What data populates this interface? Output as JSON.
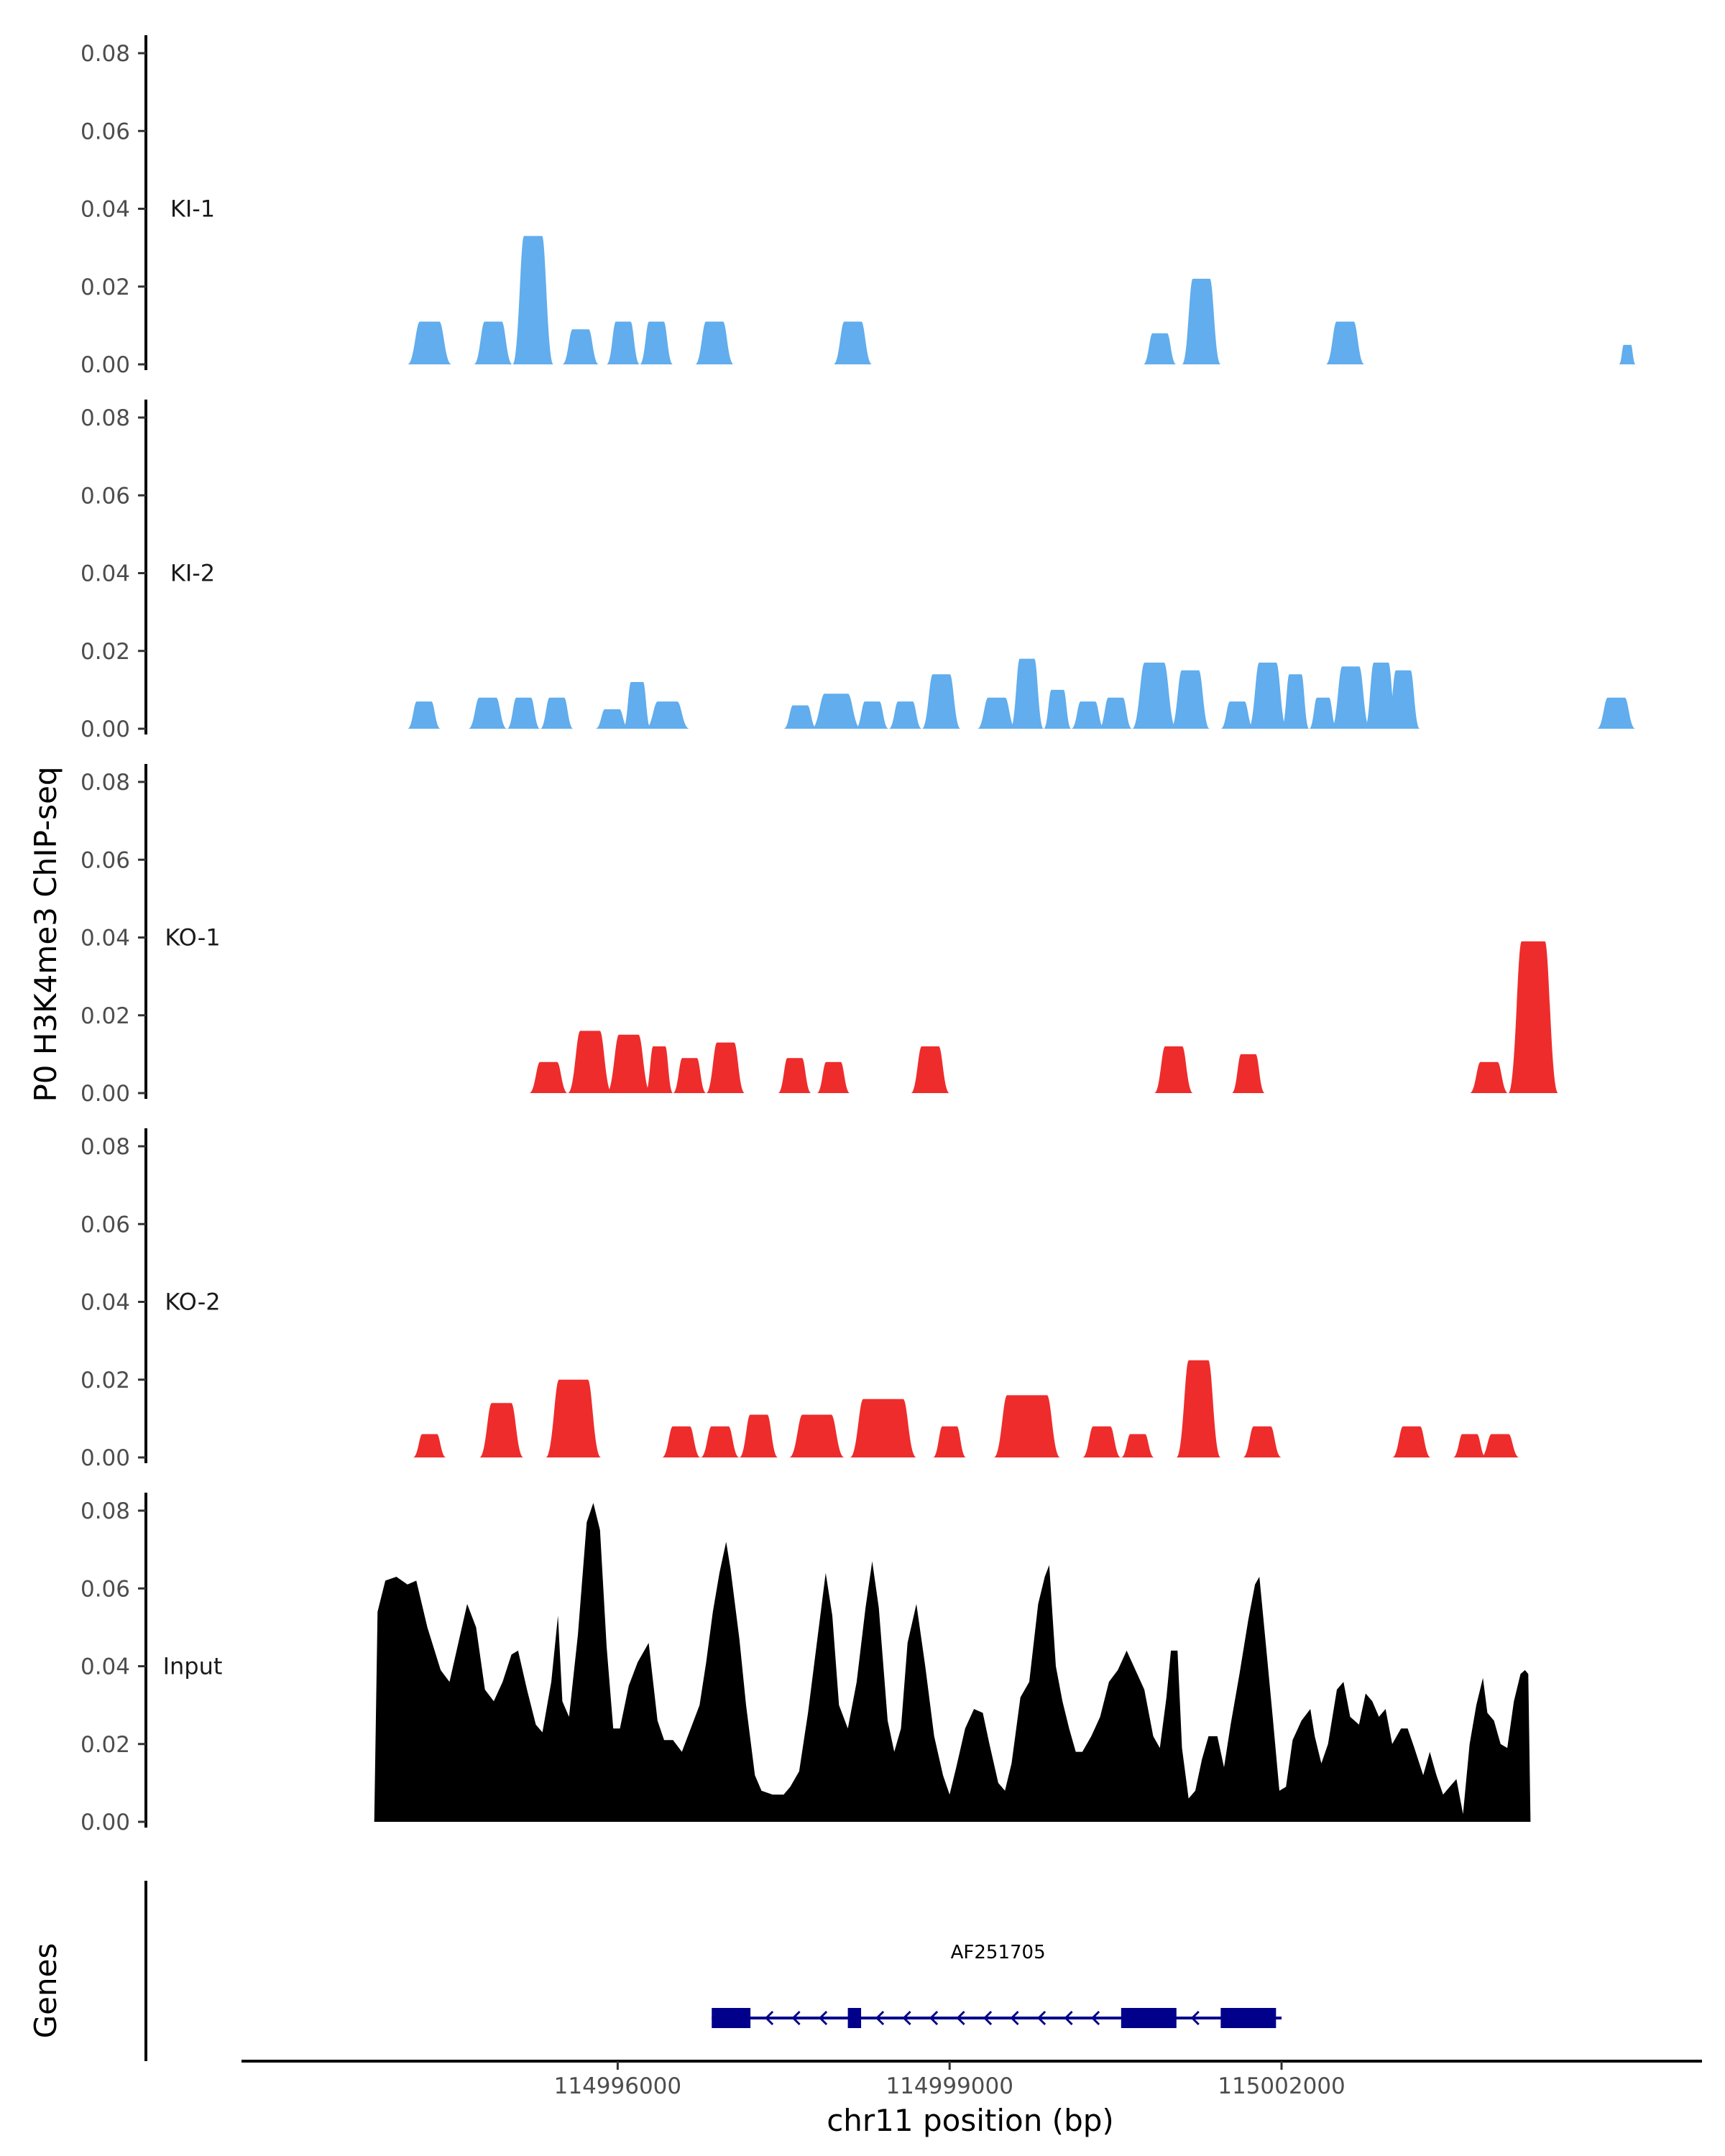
{
  "chart_data": {
    "type": "area",
    "title": "",
    "ylabel": "P0 H3K4me3 ChIP-seq",
    "xlabel": "chr11 position (bp)",
    "x_range": [
      114993800,
      115005200
    ],
    "xlim": [
      114992600,
      115005800
    ],
    "x_ticks": [
      114996000,
      114999000,
      115002000
    ],
    "x_tick_labels": [
      "114996000",
      "114999000",
      "115002000"
    ],
    "y_range": [
      0,
      0.085
    ],
    "y_ticks": [
      0,
      0.02,
      0.04,
      0.06,
      0.08
    ],
    "y_tick_labels": [
      "0.00",
      "0.02",
      "0.04",
      "0.06",
      "0.08"
    ],
    "colors": {
      "KI": "#61ADED",
      "KO": "#EE2C2C",
      "Input": "#000000",
      "gene": "#00008B"
    },
    "tracks": [
      {
        "name": "KI-1",
        "color": "#61ADED",
        "peaks": [
          [
            114994100,
            114994500,
            0.011
          ],
          [
            114994700,
            114995050,
            0.011
          ],
          [
            114995050,
            114995420,
            0.033
          ],
          [
            114995500,
            114995830,
            0.009
          ],
          [
            114995900,
            114996200,
            0.011
          ],
          [
            114996200,
            114996500,
            0.011
          ],
          [
            114996700,
            114997050,
            0.011
          ],
          [
            114997950,
            114998300,
            0.011
          ],
          [
            115000750,
            115001050,
            0.008
          ],
          [
            115001100,
            115001450,
            0.022
          ],
          [
            115002400,
            115002750,
            0.011
          ],
          [
            115005050,
            115005200,
            0.005
          ]
        ]
      },
      {
        "name": "KI-2",
        "color": "#61ADED",
        "peaks": [
          [
            114994100,
            114994400,
            0.007
          ],
          [
            114994650,
            114995000,
            0.008
          ],
          [
            114995000,
            114995300,
            0.008
          ],
          [
            114995300,
            114995600,
            0.008
          ],
          [
            114995800,
            114996100,
            0.005
          ],
          [
            114996050,
            114996300,
            0.012
          ],
          [
            114996250,
            114996650,
            0.007
          ],
          [
            114997500,
            114997800,
            0.006
          ],
          [
            114997750,
            114998200,
            0.009
          ],
          [
            114998150,
            114998450,
            0.007
          ],
          [
            114998450,
            114998750,
            0.007
          ],
          [
            114998750,
            114999100,
            0.014
          ],
          [
            114999250,
            114999600,
            0.008
          ],
          [
            114999550,
            114999850,
            0.018
          ],
          [
            114999850,
            115000100,
            0.01
          ],
          [
            115000100,
            115000400,
            0.007
          ],
          [
            115000350,
            115000650,
            0.008
          ],
          [
            115000650,
            115001050,
            0.017
          ],
          [
            115001000,
            115001350,
            0.015
          ],
          [
            115001450,
            115001750,
            0.007
          ],
          [
            115001700,
            115002050,
            0.017
          ],
          [
            115002000,
            115002250,
            0.014
          ],
          [
            115002250,
            115002500,
            0.008
          ],
          [
            115002450,
            115002800,
            0.016
          ],
          [
            115002750,
            115003050,
            0.017
          ],
          [
            115002950,
            115003250,
            0.015
          ],
          [
            115004850,
            115005200,
            0.008
          ]
        ]
      },
      {
        "name": "KO-1",
        "color": "#EE2C2C",
        "peaks": [
          [
            114995200,
            114995550,
            0.008
          ],
          [
            114995550,
            114995950,
            0.016
          ],
          [
            114995900,
            114996300,
            0.015
          ],
          [
            114996250,
            114996500,
            0.012
          ],
          [
            114996500,
            114996800,
            0.009
          ],
          [
            114996800,
            114997150,
            0.013
          ],
          [
            114997450,
            114997750,
            0.009
          ],
          [
            114997800,
            114998100,
            0.008
          ],
          [
            114998650,
            114999000,
            0.012
          ],
          [
            115000850,
            115001200,
            0.012
          ],
          [
            115001550,
            115001850,
            0.01
          ],
          [
            115003700,
            115004050,
            0.008
          ],
          [
            115004050,
            115004500,
            0.039
          ]
        ]
      },
      {
        "name": "KO-2",
        "color": "#EE2C2C",
        "peaks": [
          [
            114994150,
            114994450,
            0.006
          ],
          [
            114994750,
            114995150,
            0.014
          ],
          [
            114995350,
            114995850,
            0.02
          ],
          [
            114996400,
            114996750,
            0.008
          ],
          [
            114996750,
            114997100,
            0.008
          ],
          [
            114997100,
            114997450,
            0.011
          ],
          [
            114997550,
            114998050,
            0.011
          ],
          [
            114998100,
            114998700,
            0.015
          ],
          [
            114998850,
            114999150,
            0.008
          ],
          [
            114999400,
            115000000,
            0.016
          ],
          [
            115000200,
            115000550,
            0.008
          ],
          [
            115000550,
            115000850,
            0.006
          ],
          [
            115001050,
            115001450,
            0.025
          ],
          [
            115001650,
            115002000,
            0.008
          ],
          [
            115003000,
            115003350,
            0.008
          ],
          [
            115003550,
            115003850,
            0.006
          ],
          [
            115003800,
            115004150,
            0.006
          ]
        ]
      },
      {
        "name": "Input",
        "color": "#000000",
        "points": [
          [
            114993800,
            0
          ],
          [
            114993830,
            0.054
          ],
          [
            114993900,
            0.062
          ],
          [
            114994000,
            0.063
          ],
          [
            114994100,
            0.061
          ],
          [
            114994180,
            0.062
          ],
          [
            114994280,
            0.05
          ],
          [
            114994400,
            0.039
          ],
          [
            114994480,
            0.036
          ],
          [
            114994560,
            0.046
          ],
          [
            114994640,
            0.056
          ],
          [
            114994720,
            0.05
          ],
          [
            114994800,
            0.034
          ],
          [
            114994880,
            0.031
          ],
          [
            114994960,
            0.036
          ],
          [
            114995040,
            0.043
          ],
          [
            114995100,
            0.044
          ],
          [
            114995180,
            0.034
          ],
          [
            114995260,
            0.025
          ],
          [
            114995320,
            0.023
          ],
          [
            114995400,
            0.036
          ],
          [
            114995460,
            0.053
          ],
          [
            114995500,
            0.031
          ],
          [
            114995560,
            0.027
          ],
          [
            114995640,
            0.048
          ],
          [
            114995720,
            0.077
          ],
          [
            114995780,
            0.082
          ],
          [
            114995840,
            0.075
          ],
          [
            114995900,
            0.045
          ],
          [
            114995960,
            0.024
          ],
          [
            114996020,
            0.024
          ],
          [
            114996100,
            0.035
          ],
          [
            114996180,
            0.041
          ],
          [
            114996280,
            0.046
          ],
          [
            114996360,
            0.026
          ],
          [
            114996420,
            0.021
          ],
          [
            114996500,
            0.021
          ],
          [
            114996580,
            0.018
          ],
          [
            114996660,
            0.024
          ],
          [
            114996740,
            0.03
          ],
          [
            114996800,
            0.041
          ],
          [
            114996860,
            0.054
          ],
          [
            114996920,
            0.064
          ],
          [
            114996980,
            0.072
          ],
          [
            114997020,
            0.065
          ],
          [
            114997100,
            0.047
          ],
          [
            114997160,
            0.03
          ],
          [
            114997240,
            0.012
          ],
          [
            114997300,
            0.008
          ],
          [
            114997400,
            0.007
          ],
          [
            114997500,
            0.007
          ],
          [
            114997560,
            0.009
          ],
          [
            114997640,
            0.013
          ],
          [
            114997720,
            0.028
          ],
          [
            114997800,
            0.046
          ],
          [
            114997880,
            0.064
          ],
          [
            114997940,
            0.053
          ],
          [
            114998000,
            0.03
          ],
          [
            114998080,
            0.024
          ],
          [
            114998160,
            0.036
          ],
          [
            114998240,
            0.055
          ],
          [
            114998300,
            0.067
          ],
          [
            114998360,
            0.055
          ],
          [
            114998440,
            0.026
          ],
          [
            114998500,
            0.018
          ],
          [
            114998560,
            0.024
          ],
          [
            114998620,
            0.046
          ],
          [
            114998700,
            0.056
          ],
          [
            114998780,
            0.04
          ],
          [
            114998860,
            0.022
          ],
          [
            114998940,
            0.012
          ],
          [
            114999000,
            0.007
          ],
          [
            114999060,
            0.014
          ],
          [
            114999140,
            0.024
          ],
          [
            114999220,
            0.029
          ],
          [
            114999300,
            0.028
          ],
          [
            114999360,
            0.02
          ],
          [
            114999440,
            0.01
          ],
          [
            114999500,
            0.008
          ],
          [
            114999560,
            0.015
          ],
          [
            114999640,
            0.032
          ],
          [
            114999720,
            0.036
          ],
          [
            114999800,
            0.056
          ],
          [
            114999860,
            0.063
          ],
          [
            114999900,
            0.066
          ],
          [
            114999960,
            0.04
          ],
          [
            115000020,
            0.031
          ],
          [
            115000080,
            0.024
          ],
          [
            115000140,
            0.018
          ],
          [
            115000200,
            0.018
          ],
          [
            115000280,
            0.022
          ],
          [
            115000360,
            0.027
          ],
          [
            115000440,
            0.036
          ],
          [
            115000520,
            0.039
          ],
          [
            115000600,
            0.044
          ],
          [
            115000680,
            0.039
          ],
          [
            115000760,
            0.034
          ],
          [
            115000840,
            0.022
          ],
          [
            115000900,
            0.019
          ],
          [
            115000960,
            0.032
          ],
          [
            115001000,
            0.044
          ],
          [
            115001060,
            0.044
          ],
          [
            115001100,
            0.019
          ],
          [
            115001160,
            0.006
          ],
          [
            115001220,
            0.008
          ],
          [
            115001280,
            0.016
          ],
          [
            115001340,
            0.022
          ],
          [
            115001420,
            0.022
          ],
          [
            115001480,
            0.014
          ],
          [
            115001540,
            0.025
          ],
          [
            115001620,
            0.038
          ],
          [
            115001700,
            0.052
          ],
          [
            115001760,
            0.061
          ],
          [
            115001800,
            0.063
          ],
          [
            115001860,
            0.045
          ],
          [
            115001920,
            0.027
          ],
          [
            115001980,
            0.008
          ],
          [
            115002040,
            0.009
          ],
          [
            115002100,
            0.021
          ],
          [
            115002180,
            0.026
          ],
          [
            115002260,
            0.029
          ],
          [
            115002300,
            0.022
          ],
          [
            115002360,
            0.015
          ],
          [
            115002420,
            0.02
          ],
          [
            115002500,
            0.034
          ],
          [
            115002560,
            0.036
          ],
          [
            115002620,
            0.027
          ],
          [
            115002700,
            0.025
          ],
          [
            115002760,
            0.033
          ],
          [
            115002820,
            0.031
          ],
          [
            115002880,
            0.027
          ],
          [
            115002940,
            0.029
          ],
          [
            115003000,
            0.02
          ],
          [
            115003080,
            0.024
          ],
          [
            115003140,
            0.024
          ],
          [
            115003200,
            0.019
          ],
          [
            115003280,
            0.012
          ],
          [
            115003340,
            0.018
          ],
          [
            115003400,
            0.012
          ],
          [
            115003460,
            0.007
          ],
          [
            115003520,
            0.009
          ],
          [
            115003580,
            0.011
          ],
          [
            115003640,
            0.002
          ],
          [
            115003700,
            0.02
          ],
          [
            115003760,
            0.03
          ],
          [
            115003820,
            0.037
          ],
          [
            115003860,
            0.028
          ],
          [
            115003920,
            0.026
          ],
          [
            115003980,
            0.02
          ],
          [
            115004040,
            0.019
          ],
          [
            115004100,
            0.031
          ],
          [
            115004160,
            0.038
          ],
          [
            115004200,
            0.039
          ],
          [
            115004230,
            0.038
          ],
          [
            115004250,
            0
          ]
        ]
      }
    ],
    "genes_title": "Genes",
    "genes": [
      {
        "name": "AF251705",
        "start": 114996850,
        "end": 115002000,
        "strand": "-",
        "exons": [
          [
            114996850,
            114997200
          ],
          [
            114998080,
            114998200
          ],
          [
            115000550,
            115001050
          ],
          [
            115001450,
            115001950
          ]
        ]
      }
    ]
  }
}
